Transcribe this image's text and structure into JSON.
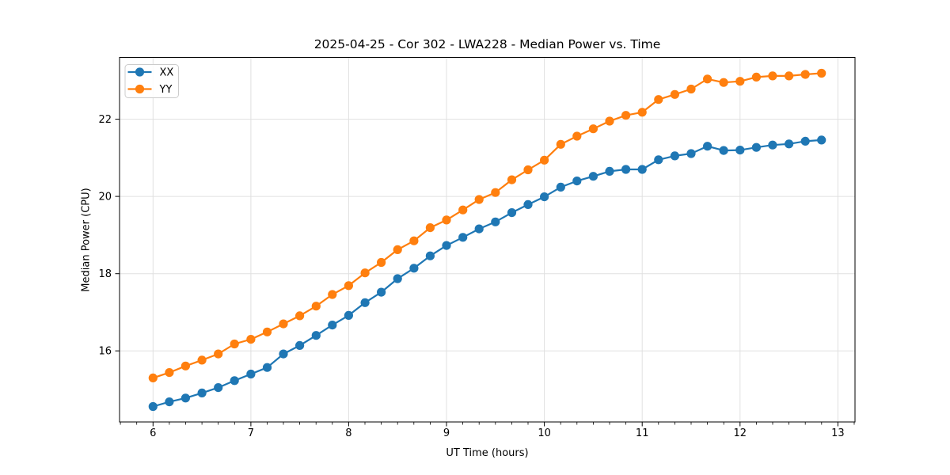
{
  "figure": {
    "title": "2025-04-25 - Cor 302 - LWA228 - Median Power vs. Time"
  },
  "chart_data": {
    "type": "line",
    "title": "2025-04-25 - Cor 302 - LWA228 - Median Power vs. Time",
    "xlabel": "UT Time (hours)",
    "ylabel": "Median Power (CPU)",
    "x": [
      6.0,
      6.167,
      6.333,
      6.5,
      6.667,
      6.833,
      7.0,
      7.167,
      7.333,
      7.5,
      7.667,
      7.833,
      8.0,
      8.167,
      8.333,
      8.5,
      8.667,
      8.833,
      9.0,
      9.167,
      9.333,
      9.5,
      9.667,
      9.833,
      10.0,
      10.167,
      10.333,
      10.5,
      10.667,
      10.833,
      11.0,
      11.167,
      11.333,
      11.5,
      11.667,
      11.833,
      12.0,
      12.167,
      12.333,
      12.5,
      12.667,
      12.833
    ],
    "series": [
      {
        "name": "XX",
        "color": "#1f77b4",
        "values": [
          14.56,
          14.68,
          14.78,
          14.91,
          15.05,
          15.23,
          15.4,
          15.57,
          15.92,
          16.14,
          16.4,
          16.67,
          16.92,
          17.25,
          17.52,
          17.87,
          18.14,
          18.46,
          18.73,
          18.94,
          19.16,
          19.34,
          19.58,
          19.79,
          19.99,
          20.24,
          20.4,
          20.52,
          20.65,
          20.7,
          20.7,
          20.95,
          21.05,
          21.11,
          21.3,
          21.19,
          21.2,
          21.27,
          21.33,
          21.36,
          21.43,
          21.46
        ]
      },
      {
        "name": "YY",
        "color": "#ff7f0e",
        "values": [
          15.3,
          15.44,
          15.61,
          15.76,
          15.92,
          16.18,
          16.3,
          16.49,
          16.7,
          16.91,
          17.16,
          17.46,
          17.69,
          18.02,
          18.29,
          18.62,
          18.85,
          19.19,
          19.39,
          19.65,
          19.92,
          20.1,
          20.43,
          20.69,
          20.94,
          21.35,
          21.56,
          21.75,
          21.95,
          22.1,
          22.18,
          22.51,
          22.64,
          22.78,
          23.04,
          22.95,
          22.98,
          23.09,
          23.12,
          23.12,
          23.16,
          23.19
        ]
      }
    ],
    "xlim": [
      5.658,
      13.175
    ],
    "ylim": [
      14.16,
      23.6
    ],
    "xticks": [
      6,
      7,
      8,
      9,
      10,
      11,
      12,
      13
    ],
    "yticks": [
      16,
      18,
      20,
      22
    ],
    "minor_xtick_interval_hours": 0.1667,
    "grid": true,
    "legend_position": "upper left",
    "marker": "circle",
    "colors": {
      "grid": "#e0e0e0",
      "spine": "#000000",
      "tick": "#000000"
    }
  }
}
